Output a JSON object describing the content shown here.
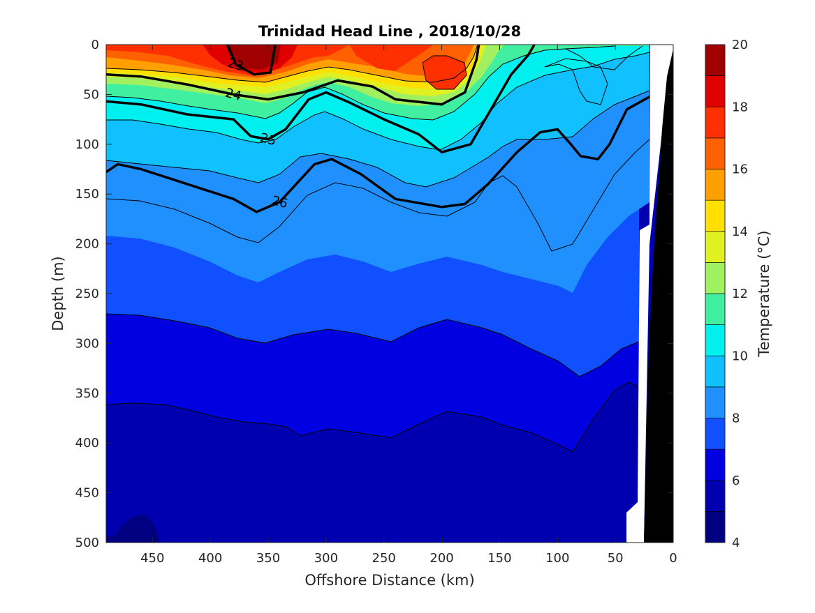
{
  "chart_data": {
    "type": "contour",
    "title": "Trinidad Head Line , 2018/10/28",
    "xlabel": "Offshore Distance (km)",
    "ylabel": "Depth (m)",
    "colorbar_label": "Temperature (°C)",
    "xlim": [
      490,
      0
    ],
    "x_reversed": true,
    "ylim": [
      0,
      500
    ],
    "y_reversed": true,
    "xticks": [
      450,
      400,
      350,
      300,
      250,
      200,
      150,
      100,
      50,
      0
    ],
    "yticks": [
      0,
      50,
      100,
      150,
      200,
      250,
      300,
      350,
      400,
      450,
      500
    ],
    "colorbar_ticks": [
      4,
      6,
      8,
      10,
      12,
      14,
      16,
      18,
      20
    ],
    "temperature_levels": [
      4,
      5,
      6,
      7,
      8,
      9,
      10,
      11,
      12,
      13,
      14,
      15,
      16,
      17,
      18,
      19,
      20
    ],
    "colormap": [
      "#000080",
      "#0000B0",
      "#0000E0",
      "#1050FF",
      "#2090FF",
      "#10C0FF",
      "#00F0F0",
      "#40F0A0",
      "#A0F060",
      "#E0F020",
      "#FFE000",
      "#FFA000",
      "#FF6000",
      "#FF3000",
      "#E00000",
      "#A00000"
    ],
    "density_contours": [
      {
        "label": "23",
        "points": [
          [
            385,
            0
          ],
          [
            378,
            20
          ],
          [
            362,
            30
          ],
          [
            348,
            28
          ],
          [
            344,
            0
          ]
        ]
      },
      {
        "label": "24",
        "points": [
          [
            490,
            30
          ],
          [
            460,
            32
          ],
          [
            420,
            40
          ],
          [
            380,
            50
          ],
          [
            350,
            55
          ],
          [
            320,
            48
          ],
          [
            290,
            36
          ],
          [
            260,
            42
          ],
          [
            240,
            55
          ],
          [
            200,
            60
          ],
          [
            180,
            48
          ],
          [
            170,
            15
          ],
          [
            168,
            0
          ]
        ]
      },
      {
        "label": "25",
        "points": [
          [
            490,
            57
          ],
          [
            460,
            60
          ],
          [
            420,
            70
          ],
          [
            380,
            75
          ],
          [
            365,
            92
          ],
          [
            350,
            95
          ],
          [
            335,
            85
          ],
          [
            315,
            55
          ],
          [
            300,
            48
          ],
          [
            280,
            58
          ],
          [
            250,
            75
          ],
          [
            220,
            90
          ],
          [
            200,
            108
          ],
          [
            175,
            100
          ],
          [
            155,
            60
          ],
          [
            140,
            30
          ],
          [
            125,
            10
          ],
          [
            120,
            0
          ]
        ]
      },
      {
        "label": "26",
        "points": [
          [
            490,
            128
          ],
          [
            480,
            120
          ],
          [
            460,
            125
          ],
          [
            420,
            140
          ],
          [
            380,
            155
          ],
          [
            360,
            168
          ],
          [
            340,
            158
          ],
          [
            310,
            120
          ],
          [
            295,
            115
          ],
          [
            270,
            130
          ],
          [
            240,
            155
          ],
          [
            200,
            163
          ],
          [
            180,
            160
          ],
          [
            160,
            140
          ],
          [
            135,
            108
          ],
          [
            115,
            88
          ],
          [
            100,
            85
          ],
          [
            90,
            98
          ],
          [
            80,
            112
          ],
          [
            65,
            115
          ],
          [
            55,
            100
          ],
          [
            40,
            65
          ],
          [
            20,
            52
          ]
        ]
      }
    ],
    "landmask": {
      "label": "",
      "color": "#000000"
    }
  }
}
